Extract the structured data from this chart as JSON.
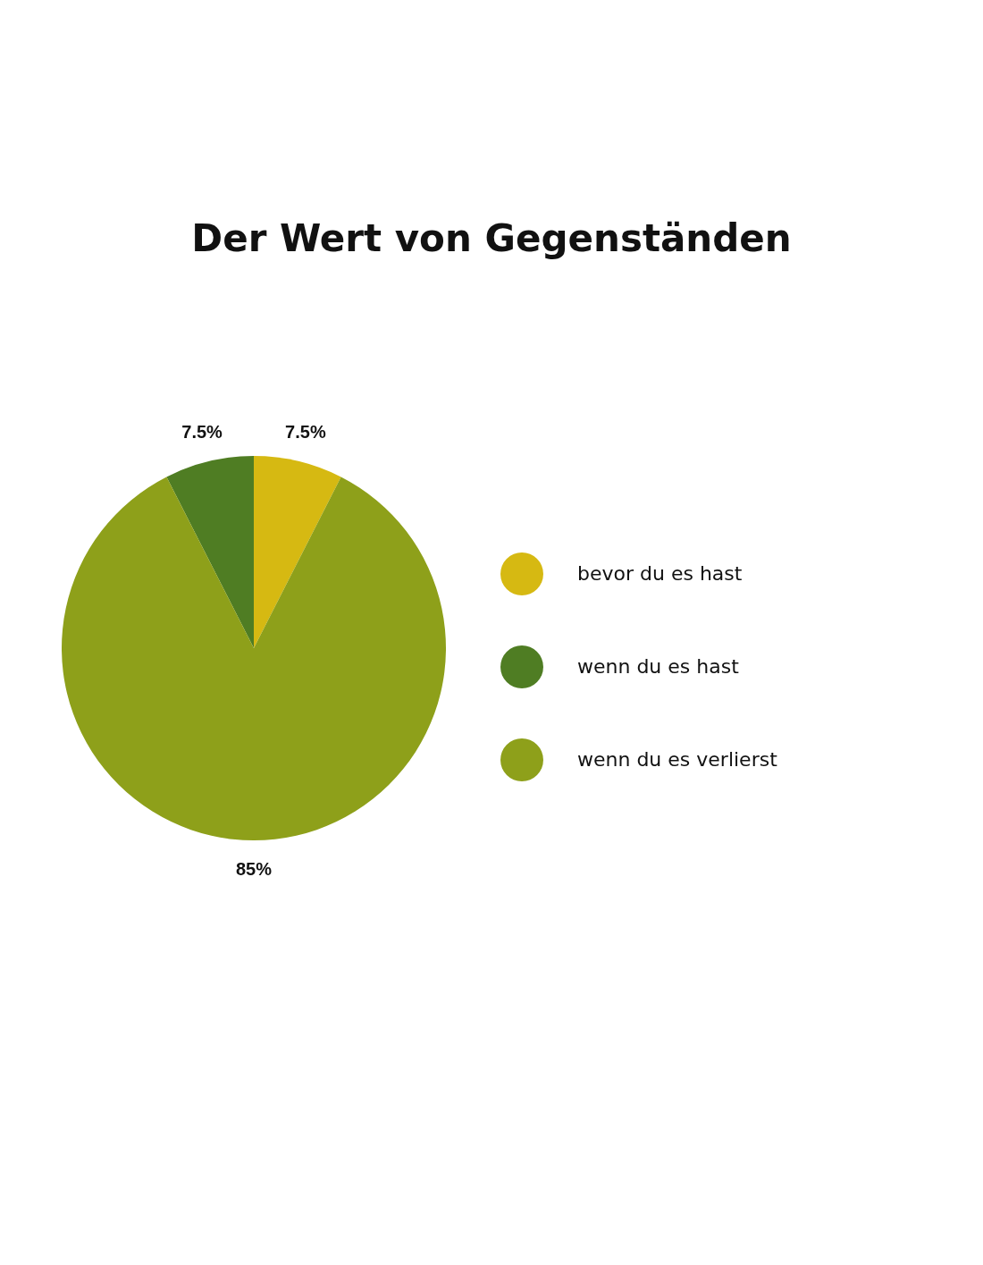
{
  "chart_data": {
    "type": "pie",
    "title": "Der Wert von Gegenständen",
    "categories": [
      "bevor du es hast",
      "wenn du es hast",
      "wenn du es verlierst"
    ],
    "values": [
      7.5,
      7.5,
      85
    ],
    "colors": [
      "#d6b912",
      "#4f7d23",
      "#8ea01a"
    ],
    "value_labels": [
      "7.5%",
      "7.5%",
      "85%"
    ],
    "legend": "right"
  }
}
